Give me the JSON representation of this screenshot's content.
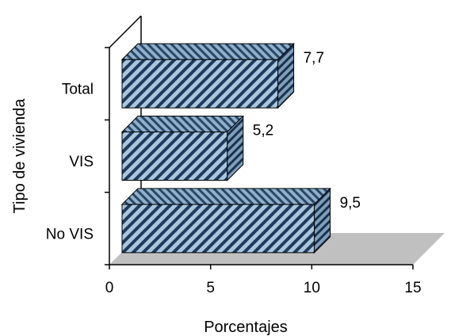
{
  "chart_data": {
    "type": "bar",
    "orientation": "horizontal",
    "three_d": true,
    "categories": [
      "Total",
      "VIS",
      "No  VIS"
    ],
    "values": [
      7.7,
      5.2,
      9.5
    ],
    "data_labels": [
      "7,7",
      "5,2",
      "9,5"
    ],
    "xlabel": "Porcentajes",
    "ylabel": "Tipo de vivienda",
    "xlim": [
      0,
      15
    ],
    "xticks": [
      0,
      5,
      10,
      15
    ],
    "xtick_labels": [
      "0",
      "5",
      "10",
      "15"
    ],
    "grid": false,
    "legend": "none",
    "colors": {
      "bar_face": "#a9c6dc",
      "bar_stripe": "#1f3a5c",
      "floor": "#c0c0c0",
      "axis": "#000000"
    }
  }
}
